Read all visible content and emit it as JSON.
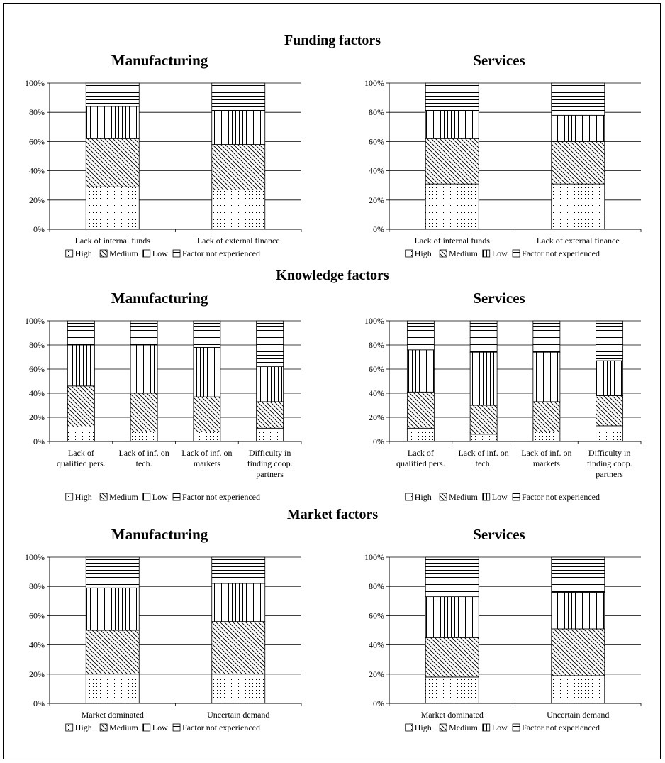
{
  "sections": [
    {
      "title": "Funding factors"
    },
    {
      "title": "Knowledge factors"
    },
    {
      "title": "Market factors"
    }
  ],
  "legend_labels": [
    "High",
    "Medium",
    "Low",
    "Factor not experienced"
  ],
  "chart_data": [
    {
      "type": "bar",
      "stacked": true,
      "section": "Funding factors",
      "title": "Manufacturing",
      "categories": [
        [
          "Lack of internal funds"
        ],
        [
          "Lack of external finance"
        ]
      ],
      "yticks": [
        "0%",
        "20%",
        "40%",
        "60%",
        "80%",
        "100%"
      ],
      "ylim": [
        0,
        100
      ],
      "grid": true,
      "legend": "bottom",
      "series": [
        {
          "name": "High",
          "values": [
            29,
            27
          ]
        },
        {
          "name": "Medium",
          "values": [
            33,
            31
          ]
        },
        {
          "name": "Low",
          "values": [
            22,
            23
          ]
        },
        {
          "name": "Factor not experienced",
          "values": [
            16,
            19
          ]
        }
      ]
    },
    {
      "type": "bar",
      "stacked": true,
      "section": "Funding factors",
      "title": "Services",
      "categories": [
        [
          "Lack of internal funds"
        ],
        [
          "Lack of external finance"
        ]
      ],
      "yticks": [
        "0%",
        "20%",
        "40%",
        "60%",
        "80%",
        "100%"
      ],
      "ylim": [
        0,
        100
      ],
      "grid": true,
      "legend": "bottom",
      "series": [
        {
          "name": "High",
          "values": [
            31,
            31
          ]
        },
        {
          "name": "Medium",
          "values": [
            31,
            29
          ]
        },
        {
          "name": "Low",
          "values": [
            19,
            18
          ]
        },
        {
          "name": "Factor not experienced",
          "values": [
            19,
            22
          ]
        }
      ]
    },
    {
      "type": "bar",
      "stacked": true,
      "section": "Knowledge factors",
      "title": "Manufacturing",
      "categories": [
        [
          "Lack of",
          "qualified pers."
        ],
        [
          "Lack of inf. on",
          "tech."
        ],
        [
          "Lack of inf. on",
          "markets"
        ],
        [
          "Difficulty in",
          "finding coop.",
          "partners"
        ]
      ],
      "yticks": [
        "0%",
        "20%",
        "40%",
        "60%",
        "80%",
        "100%"
      ],
      "ylim": [
        0,
        100
      ],
      "grid": true,
      "legend": "bottom",
      "series": [
        {
          "name": "High",
          "values": [
            12,
            8,
            8,
            11
          ]
        },
        {
          "name": "Medium",
          "values": [
            34,
            32,
            29,
            22
          ]
        },
        {
          "name": "Low",
          "values": [
            34,
            40,
            41,
            29
          ]
        },
        {
          "name": "Factor not experienced",
          "values": [
            20,
            20,
            22,
            38
          ]
        }
      ]
    },
    {
      "type": "bar",
      "stacked": true,
      "section": "Knowledge factors",
      "title": "Services",
      "categories": [
        [
          "Lack of",
          "qualified pers."
        ],
        [
          "Lack of inf. on",
          "tech."
        ],
        [
          "Lack of inf. on",
          "markets"
        ],
        [
          "Difficulty in",
          "finding coop.",
          "partners"
        ]
      ],
      "yticks": [
        "0%",
        "20%",
        "40%",
        "60%",
        "80%",
        "100%"
      ],
      "ylim": [
        0,
        100
      ],
      "grid": true,
      "legend": "bottom",
      "series": [
        {
          "name": "High",
          "values": [
            11,
            6,
            8,
            13
          ]
        },
        {
          "name": "Medium",
          "values": [
            30,
            24,
            25,
            25
          ]
        },
        {
          "name": "Low",
          "values": [
            35,
            44,
            41,
            29
          ]
        },
        {
          "name": "Factor not experienced",
          "values": [
            24,
            26,
            26,
            33
          ]
        }
      ]
    },
    {
      "type": "bar",
      "stacked": true,
      "section": "Market factors",
      "title": "Manufacturing",
      "categories": [
        [
          "Market dominated"
        ],
        [
          "Uncertain demand"
        ]
      ],
      "yticks": [
        "0%",
        "20%",
        "40%",
        "60%",
        "80%",
        "100%"
      ],
      "ylim": [
        0,
        100
      ],
      "grid": true,
      "legend": "bottom",
      "series": [
        {
          "name": "High",
          "values": [
            20,
            20
          ]
        },
        {
          "name": "Medium",
          "values": [
            30,
            36
          ]
        },
        {
          "name": "Low",
          "values": [
            29,
            26
          ]
        },
        {
          "name": "Factor not experienced",
          "values": [
            21,
            18
          ]
        }
      ]
    },
    {
      "type": "bar",
      "stacked": true,
      "section": "Market factors",
      "title": "Services",
      "categories": [
        [
          "Market dominated"
        ],
        [
          "Uncertain demand"
        ]
      ],
      "yticks": [
        "0%",
        "20%",
        "40%",
        "60%",
        "80%",
        "100%"
      ],
      "ylim": [
        0,
        100
      ],
      "grid": true,
      "legend": "bottom",
      "series": [
        {
          "name": "High",
          "values": [
            18,
            19
          ]
        },
        {
          "name": "Medium",
          "values": [
            27,
            32
          ]
        },
        {
          "name": "Low",
          "values": [
            28,
            25
          ]
        },
        {
          "name": "Factor not experienced",
          "values": [
            27,
            24
          ]
        }
      ]
    }
  ]
}
